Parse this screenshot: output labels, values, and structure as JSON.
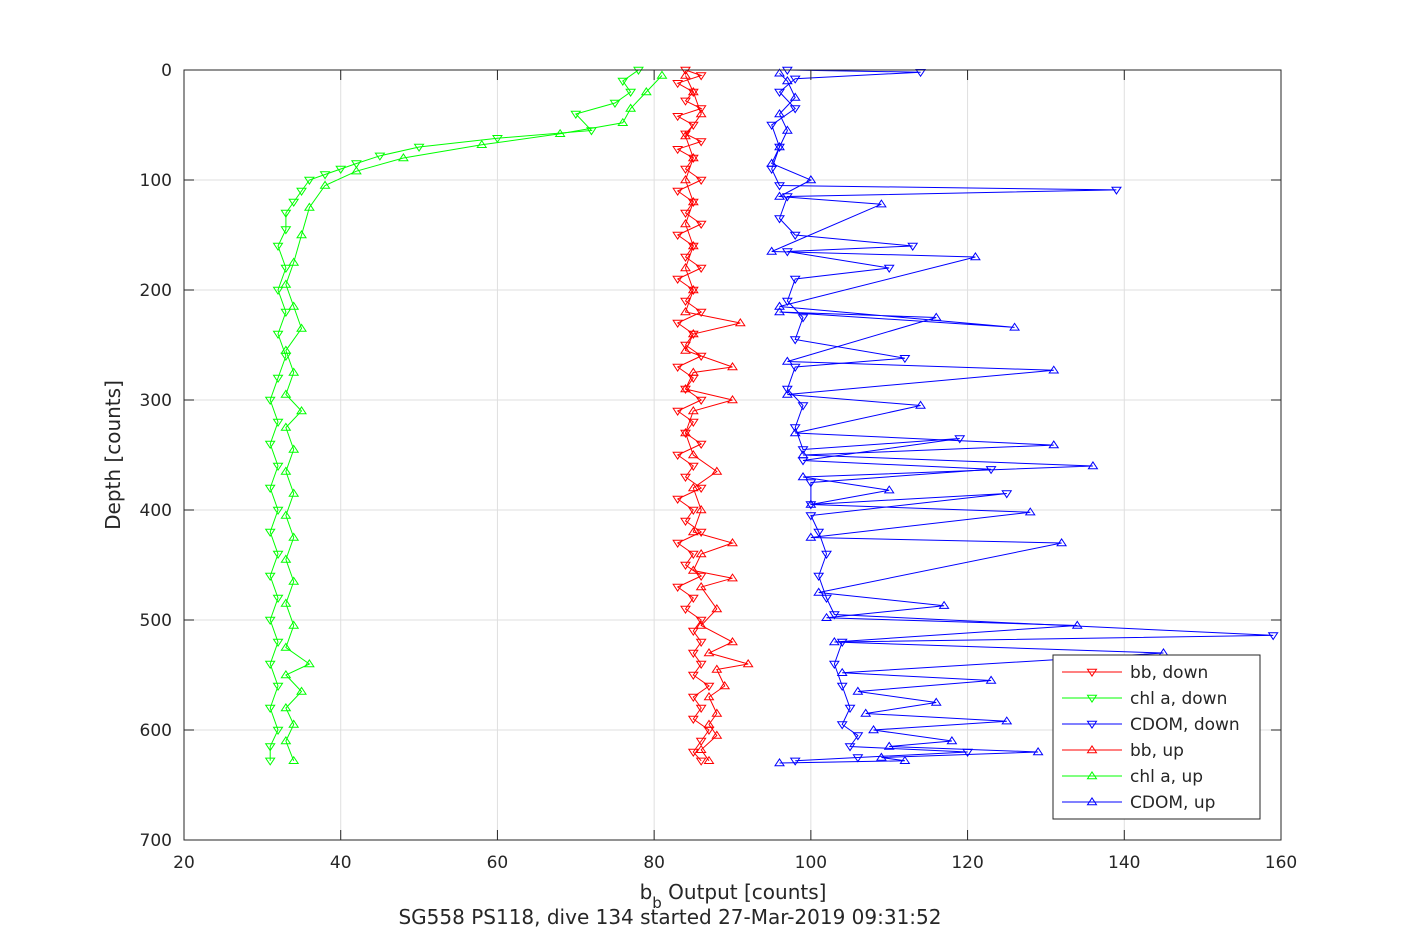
{
  "chart_data": {
    "type": "line",
    "title": "",
    "xlabel_main": "b",
    "xlabel_sub": "b",
    "xlabel_rest": " Output [counts]",
    "ylabel": "Depth [counts]",
    "caption": "SG558 PS118, dive 134 started 27-Mar-2019 09:31:52",
    "xlim": [
      20,
      160
    ],
    "ylim": [
      0,
      700
    ],
    "y_reversed": true,
    "grid": true,
    "xticks": [
      20,
      40,
      60,
      80,
      100,
      120,
      140,
      160
    ],
    "yticks": [
      0,
      100,
      200,
      300,
      400,
      500,
      600,
      700
    ],
    "legend_position": "bottom-right",
    "series": [
      {
        "name": "bb, down",
        "color": "#ff0000",
        "marker": "triangle-down",
        "points": [
          [
            84,
            0
          ],
          [
            86,
            5
          ],
          [
            83,
            12
          ],
          [
            85,
            20
          ],
          [
            84,
            28
          ],
          [
            86,
            35
          ],
          [
            83,
            42
          ],
          [
            85,
            50
          ],
          [
            84,
            58
          ],
          [
            86,
            65
          ],
          [
            83,
            72
          ],
          [
            85,
            80
          ],
          [
            84,
            90
          ],
          [
            86,
            100
          ],
          [
            83,
            110
          ],
          [
            85,
            120
          ],
          [
            84,
            130
          ],
          [
            86,
            140
          ],
          [
            83,
            150
          ],
          [
            85,
            160
          ],
          [
            84,
            170
          ],
          [
            86,
            180
          ],
          [
            83,
            190
          ],
          [
            85,
            200
          ],
          [
            84,
            210
          ],
          [
            86,
            220
          ],
          [
            83,
            230
          ],
          [
            85,
            240
          ],
          [
            84,
            250
          ],
          [
            86,
            260
          ],
          [
            83,
            270
          ],
          [
            85,
            280
          ],
          [
            84,
            290
          ],
          [
            86,
            300
          ],
          [
            83,
            310
          ],
          [
            85,
            320
          ],
          [
            84,
            330
          ],
          [
            86,
            340
          ],
          [
            83,
            350
          ],
          [
            85,
            360
          ],
          [
            84,
            370
          ],
          [
            86,
            380
          ],
          [
            83,
            390
          ],
          [
            85,
            400
          ],
          [
            84,
            410
          ],
          [
            86,
            420
          ],
          [
            83,
            430
          ],
          [
            85,
            440
          ],
          [
            84,
            450
          ],
          [
            86,
            460
          ],
          [
            83,
            470
          ],
          [
            85,
            480
          ],
          [
            84,
            490
          ],
          [
            86,
            500
          ],
          [
            85,
            510
          ],
          [
            86,
            520
          ],
          [
            85,
            530
          ],
          [
            86,
            540
          ],
          [
            85,
            550
          ],
          [
            87,
            560
          ],
          [
            85,
            570
          ],
          [
            86,
            580
          ],
          [
            85,
            590
          ],
          [
            87,
            600
          ],
          [
            86,
            610
          ],
          [
            85,
            620
          ],
          [
            86,
            628
          ]
        ]
      },
      {
        "name": "chl a, down",
        "color": "#00ff00",
        "marker": "triangle-down",
        "points": [
          [
            78,
            0
          ],
          [
            76,
            10
          ],
          [
            77,
            20
          ],
          [
            75,
            30
          ],
          [
            70,
            40
          ],
          [
            72,
            55
          ],
          [
            60,
            62
          ],
          [
            50,
            70
          ],
          [
            45,
            78
          ],
          [
            42,
            85
          ],
          [
            40,
            90
          ],
          [
            38,
            95
          ],
          [
            36,
            100
          ],
          [
            35,
            110
          ],
          [
            34,
            120
          ],
          [
            33,
            130
          ],
          [
            33,
            145
          ],
          [
            32,
            160
          ],
          [
            33,
            180
          ],
          [
            32,
            200
          ],
          [
            33,
            220
          ],
          [
            32,
            240
          ],
          [
            33,
            260
          ],
          [
            32,
            280
          ],
          [
            31,
            300
          ],
          [
            32,
            320
          ],
          [
            31,
            340
          ],
          [
            32,
            360
          ],
          [
            31,
            380
          ],
          [
            32,
            400
          ],
          [
            31,
            420
          ],
          [
            32,
            440
          ],
          [
            31,
            460
          ],
          [
            32,
            480
          ],
          [
            31,
            500
          ],
          [
            32,
            520
          ],
          [
            31,
            540
          ],
          [
            32,
            560
          ],
          [
            31,
            580
          ],
          [
            32,
            600
          ],
          [
            31,
            615
          ],
          [
            31,
            628
          ]
        ]
      },
      {
        "name": "CDOM, down",
        "color": "#0000ff",
        "marker": "triangle-down",
        "points": [
          [
            97,
            0
          ],
          [
            114,
            2
          ],
          [
            98,
            8
          ],
          [
            96,
            20
          ],
          [
            98,
            35
          ],
          [
            95,
            50
          ],
          [
            96,
            70
          ],
          [
            95,
            90
          ],
          [
            96,
            105
          ],
          [
            139,
            109
          ],
          [
            97,
            115
          ],
          [
            96,
            135
          ],
          [
            98,
            150
          ],
          [
            113,
            160
          ],
          [
            97,
            165
          ],
          [
            110,
            180
          ],
          [
            98,
            190
          ],
          [
            97,
            210
          ],
          [
            99,
            225
          ],
          [
            98,
            245
          ],
          [
            112,
            262
          ],
          [
            98,
            270
          ],
          [
            97,
            290
          ],
          [
            99,
            305
          ],
          [
            98,
            325
          ],
          [
            99,
            345
          ],
          [
            119,
            335
          ],
          [
            99,
            355
          ],
          [
            123,
            363
          ],
          [
            100,
            375
          ],
          [
            100,
            395
          ],
          [
            125,
            385
          ],
          [
            100,
            405
          ],
          [
            101,
            420
          ],
          [
            102,
            440
          ],
          [
            101,
            460
          ],
          [
            102,
            480
          ],
          [
            103,
            495
          ],
          [
            159,
            514
          ],
          [
            104,
            520
          ],
          [
            103,
            540
          ],
          [
            104,
            560
          ],
          [
            105,
            580
          ],
          [
            104,
            595
          ],
          [
            106,
            605
          ],
          [
            105,
            615
          ],
          [
            120,
            620
          ],
          [
            106,
            625
          ],
          [
            98,
            628
          ]
        ]
      },
      {
        "name": "bb, up",
        "color": "#ff0000",
        "marker": "triangle-up",
        "points": [
          [
            87,
            628
          ],
          [
            86,
            618
          ],
          [
            88,
            605
          ],
          [
            87,
            595
          ],
          [
            88,
            585
          ],
          [
            87,
            570
          ],
          [
            89,
            560
          ],
          [
            88,
            545
          ],
          [
            92,
            540
          ],
          [
            87,
            530
          ],
          [
            90,
            520
          ],
          [
            86,
            505
          ],
          [
            88,
            490
          ],
          [
            86,
            470
          ],
          [
            90,
            462
          ],
          [
            85,
            455
          ],
          [
            86,
            440
          ],
          [
            90,
            430
          ],
          [
            85,
            420
          ],
          [
            86,
            400
          ],
          [
            85,
            380
          ],
          [
            88,
            365
          ],
          [
            85,
            350
          ],
          [
            84,
            330
          ],
          [
            85,
            310
          ],
          [
            90,
            300
          ],
          [
            84,
            290
          ],
          [
            85,
            275
          ],
          [
            90,
            270
          ],
          [
            84,
            255
          ],
          [
            85,
            240
          ],
          [
            91,
            230
          ],
          [
            84,
            220
          ],
          [
            85,
            200
          ],
          [
            84,
            180
          ],
          [
            85,
            160
          ],
          [
            84,
            140
          ],
          [
            85,
            120
          ],
          [
            84,
            100
          ],
          [
            85,
            80
          ],
          [
            84,
            60
          ],
          [
            86,
            40
          ],
          [
            85,
            20
          ],
          [
            84,
            5
          ]
        ]
      },
      {
        "name": "chl a, up",
        "color": "#00ff00",
        "marker": "triangle-up",
        "points": [
          [
            34,
            628
          ],
          [
            33,
            610
          ],
          [
            34,
            595
          ],
          [
            33,
            580
          ],
          [
            35,
            565
          ],
          [
            33,
            550
          ],
          [
            36,
            540
          ],
          [
            33,
            525
          ],
          [
            34,
            505
          ],
          [
            33,
            485
          ],
          [
            34,
            465
          ],
          [
            33,
            445
          ],
          [
            34,
            425
          ],
          [
            33,
            405
          ],
          [
            34,
            385
          ],
          [
            33,
            365
          ],
          [
            34,
            345
          ],
          [
            33,
            325
          ],
          [
            35,
            310
          ],
          [
            33,
            295
          ],
          [
            34,
            275
          ],
          [
            33,
            255
          ],
          [
            35,
            235
          ],
          [
            34,
            215
          ],
          [
            33,
            195
          ],
          [
            34,
            175
          ],
          [
            35,
            150
          ],
          [
            36,
            125
          ],
          [
            38,
            105
          ],
          [
            42,
            92
          ],
          [
            48,
            80
          ],
          [
            58,
            68
          ],
          [
            68,
            58
          ],
          [
            76,
            48
          ],
          [
            77,
            35
          ],
          [
            79,
            20
          ],
          [
            81,
            5
          ]
        ]
      },
      {
        "name": "CDOM, up",
        "color": "#0000ff",
        "marker": "triangle-up",
        "points": [
          [
            96,
            630
          ],
          [
            112,
            628
          ],
          [
            109,
            625
          ],
          [
            129,
            620
          ],
          [
            110,
            615
          ],
          [
            118,
            610
          ],
          [
            108,
            600
          ],
          [
            125,
            592
          ],
          [
            107,
            585
          ],
          [
            116,
            575
          ],
          [
            106,
            565
          ],
          [
            123,
            555
          ],
          [
            104,
            548
          ],
          [
            145,
            530
          ],
          [
            103,
            520
          ],
          [
            134,
            505
          ],
          [
            102,
            498
          ],
          [
            117,
            487
          ],
          [
            101,
            475
          ],
          [
            132,
            430
          ],
          [
            100,
            425
          ],
          [
            128,
            402
          ],
          [
            100,
            395
          ],
          [
            110,
            382
          ],
          [
            99,
            370
          ],
          [
            136,
            360
          ],
          [
            99,
            350
          ],
          [
            131,
            341
          ],
          [
            98,
            330
          ],
          [
            114,
            305
          ],
          [
            97,
            295
          ],
          [
            131,
            273
          ],
          [
            97,
            265
          ],
          [
            116,
            225
          ],
          [
            96,
            220
          ],
          [
            126,
            234
          ],
          [
            96,
            215
          ],
          [
            121,
            170
          ],
          [
            95,
            165
          ],
          [
            109,
            122
          ],
          [
            96,
            115
          ],
          [
            100,
            100
          ],
          [
            95,
            85
          ],
          [
            96,
            70
          ],
          [
            97,
            55
          ],
          [
            96,
            40
          ],
          [
            98,
            25
          ],
          [
            97,
            10
          ],
          [
            96,
            3
          ]
        ]
      }
    ]
  }
}
